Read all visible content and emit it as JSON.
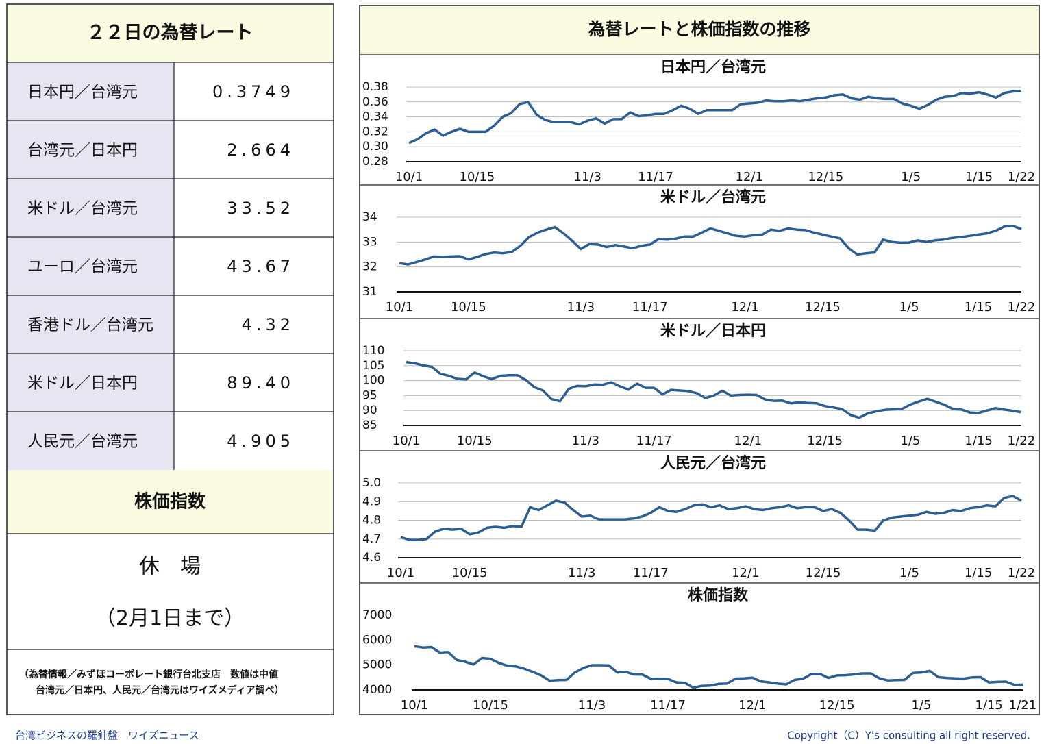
{
  "table": {
    "title": "２２日の為替レート",
    "rows": [
      [
        "日本円／台湾元",
        "0.3749"
      ],
      [
        "台湾元／日本円",
        "2.664"
      ],
      [
        "米ドル／台湾元",
        "33.52"
      ],
      [
        "ユーロ／台湾元",
        "43.67"
      ],
      [
        "香港ドル／台湾元",
        "4.32"
      ],
      [
        "米ドル／日本円",
        "89.40"
      ],
      [
        "人民元／台湾元",
        "4.905"
      ]
    ]
  },
  "stock": {
    "title": "株価指数",
    "status": "休　場",
    "note": "（2月1日まで）"
  },
  "notes": [
    "（為替情報／みずほコーポレート銀行台北支店　数値は中値",
    "台湾元／日本円、人民元／台湾元はワイズメディア調べ）"
  ],
  "panel_title": "為替レートと株価指数の推移",
  "footer": {
    "left": "台湾ビジネスの羅針盤　ワイズニュース",
    "right": "Copyright（C）Y's consulting all right reserved."
  },
  "chart_data": [
    {
      "type": "line",
      "title": "日本円／台湾元",
      "color": "#2b5f94",
      "grid": true,
      "ylim": [
        0.28,
        0.38
      ],
      "yticks": [
        0.28,
        {
          "value": 0.3,
          "label": "0.30"
        },
        0.32,
        0.34,
        0.36,
        0.38
      ],
      "categories": [
        "10/1",
        null,
        null,
        null,
        null,
        null,
        null,
        null,
        "10/15",
        null,
        null,
        null,
        null,
        null,
        null,
        null,
        null,
        null,
        null,
        null,
        null,
        "11/3",
        null,
        null,
        null,
        null,
        null,
        null,
        null,
        "11/17",
        null,
        null,
        null,
        null,
        null,
        null,
        null,
        null,
        null,
        null,
        "12/1",
        null,
        null,
        null,
        null,
        null,
        null,
        null,
        null,
        "12/15",
        null,
        null,
        null,
        null,
        null,
        null,
        null,
        null,
        null,
        "1/5",
        null,
        null,
        null,
        null,
        null,
        null,
        null,
        "1/15",
        null,
        null,
        null,
        null,
        "1/22"
      ],
      "values": [
        0.305,
        0.31,
        0.318,
        0.323,
        0.315,
        0.32,
        0.324,
        0.32,
        0.32,
        0.32,
        0.328,
        0.34,
        0.345,
        0.357,
        0.36,
        0.343,
        0.336,
        0.333,
        0.333,
        0.333,
        0.33,
        0.335,
        0.338,
        0.331,
        0.337,
        0.337,
        0.346,
        0.341,
        0.342,
        0.344,
        0.344,
        0.349,
        0.355,
        0.351,
        0.344,
        0.349,
        0.349,
        0.349,
        0.349,
        0.357,
        0.358,
        0.359,
        0.362,
        0.361,
        0.361,
        0.362,
        0.361,
        0.363,
        0.365,
        0.366,
        0.369,
        0.37,
        0.365,
        0.363,
        0.367,
        0.365,
        0.364,
        0.364,
        0.358,
        0.355,
        0.351,
        0.356,
        0.363,
        0.367,
        0.368,
        0.372,
        0.371,
        0.373,
        0.37,
        0.366,
        0.372,
        0.374,
        0.3749
      ]
    },
    {
      "type": "line",
      "title": "米ドル／台湾元",
      "color": "#2b5f94",
      "grid": true,
      "ylim": [
        31,
        34
      ],
      "yticks": [
        31,
        32,
        33,
        34
      ],
      "categories": [
        "10/1",
        null,
        null,
        null,
        null,
        null,
        null,
        null,
        "10/15",
        null,
        null,
        null,
        null,
        null,
        null,
        null,
        null,
        null,
        null,
        null,
        null,
        "11/3",
        null,
        null,
        null,
        null,
        null,
        null,
        null,
        "11/17",
        null,
        null,
        null,
        null,
        null,
        null,
        null,
        null,
        null,
        null,
        "12/1",
        null,
        null,
        null,
        null,
        null,
        null,
        null,
        null,
        "12/15",
        null,
        null,
        null,
        null,
        null,
        null,
        null,
        null,
        null,
        "1/5",
        null,
        null,
        null,
        null,
        null,
        null,
        null,
        "1/15",
        null,
        null,
        null,
        null,
        "1/22"
      ],
      "values": [
        32.15,
        32.1,
        32.2,
        32.3,
        32.42,
        32.4,
        32.42,
        32.43,
        32.3,
        32.4,
        32.52,
        32.58,
        32.55,
        32.6,
        32.85,
        33.2,
        33.38,
        33.5,
        33.6,
        33.35,
        33.05,
        32.72,
        32.92,
        32.9,
        32.8,
        32.88,
        32.82,
        32.75,
        32.85,
        32.9,
        33.12,
        33.1,
        33.14,
        33.22,
        33.22,
        33.38,
        33.55,
        33.45,
        33.35,
        33.25,
        33.22,
        33.28,
        33.3,
        33.5,
        33.45,
        33.55,
        33.5,
        33.48,
        33.38,
        33.3,
        33.22,
        33.15,
        32.75,
        32.5,
        32.55,
        32.58,
        33.1,
        33.0,
        32.97,
        32.98,
        33.07,
        33.0,
        33.07,
        33.1,
        33.17,
        33.2,
        33.25,
        33.3,
        33.35,
        33.45,
        33.62,
        33.65,
        33.52
      ]
    },
    {
      "type": "line",
      "title": "米ドル／日本円",
      "color": "#2b5f94",
      "grid": true,
      "ylim": [
        85,
        110
      ],
      "yticks": [
        85,
        90,
        95,
        100,
        105,
        110
      ],
      "categories": [
        "10/1",
        null,
        null,
        null,
        null,
        null,
        null,
        null,
        "10/15",
        null,
        null,
        null,
        null,
        null,
        null,
        null,
        null,
        null,
        null,
        null,
        null,
        "11/3",
        null,
        null,
        null,
        null,
        null,
        null,
        null,
        "11/17",
        null,
        null,
        null,
        null,
        null,
        null,
        null,
        null,
        null,
        null,
        "12/1",
        null,
        null,
        null,
        null,
        null,
        null,
        null,
        null,
        "12/15",
        null,
        null,
        null,
        null,
        null,
        null,
        null,
        null,
        null,
        "1/5",
        null,
        null,
        null,
        null,
        null,
        null,
        null,
        "1/15",
        null,
        null,
        null,
        null,
        "1/22"
      ],
      "values": [
        106.2,
        105.8,
        105.1,
        104.6,
        102.3,
        101.6,
        100.6,
        100.4,
        102.7,
        101.5,
        100.5,
        101.6,
        101.8,
        101.8,
        100.2,
        97.8,
        96.7,
        93.8,
        93.1,
        97.2,
        98.2,
        98.1,
        98.7,
        98.6,
        99.4,
        98.1,
        97.0,
        99.0,
        97.6,
        97.6,
        95.4,
        96.9,
        96.7,
        96.5,
        95.8,
        94.2,
        95.0,
        96.6,
        95.0,
        95.2,
        95.3,
        95.2,
        93.7,
        93.2,
        93.3,
        92.4,
        92.7,
        92.5,
        92.4,
        91.5,
        91.0,
        90.5,
        88.5,
        87.6,
        89.0,
        89.7,
        90.2,
        90.4,
        90.5,
        92.0,
        93.0,
        93.9,
        92.9,
        91.9,
        90.5,
        90.3,
        89.3,
        89.2,
        90.0,
        90.8,
        90.3,
        89.9,
        89.4
      ]
    },
    {
      "type": "line",
      "title": "人民元／台湾元",
      "color": "#2b5f94",
      "grid": true,
      "ylim": [
        4.6,
        5.0
      ],
      "yticks": [
        4.6,
        4.7,
        4.8,
        4.9,
        {
          "value": 5.0,
          "label": "5.0"
        }
      ],
      "categories": [
        "10/1",
        null,
        null,
        null,
        null,
        null,
        null,
        null,
        "10/15",
        null,
        null,
        null,
        null,
        null,
        null,
        null,
        null,
        null,
        null,
        null,
        null,
        "11/3",
        null,
        null,
        null,
        null,
        null,
        null,
        null,
        "11/17",
        null,
        null,
        null,
        null,
        null,
        null,
        null,
        null,
        null,
        null,
        "12/1",
        null,
        null,
        null,
        null,
        null,
        null,
        null,
        null,
        "12/15",
        null,
        null,
        null,
        null,
        null,
        null,
        null,
        null,
        null,
        "1/5",
        null,
        null,
        null,
        null,
        null,
        null,
        null,
        "1/15",
        null,
        null,
        null,
        null,
        "1/22"
      ],
      "values": [
        4.71,
        4.695,
        4.695,
        4.7,
        4.74,
        4.755,
        4.75,
        4.755,
        4.725,
        4.735,
        4.76,
        4.765,
        4.76,
        4.77,
        4.765,
        4.87,
        4.855,
        4.88,
        4.905,
        4.895,
        4.855,
        4.82,
        4.825,
        4.805,
        4.805,
        4.805,
        4.805,
        4.81,
        4.82,
        4.84,
        4.87,
        4.85,
        4.845,
        4.86,
        4.88,
        4.885,
        4.87,
        4.88,
        4.86,
        4.865,
        4.875,
        4.86,
        4.855,
        4.865,
        4.87,
        4.88,
        4.865,
        4.87,
        4.87,
        4.85,
        4.86,
        4.84,
        4.8,
        4.75,
        4.75,
        4.745,
        4.8,
        4.815,
        4.82,
        4.825,
        4.83,
        4.845,
        4.835,
        4.84,
        4.855,
        4.85,
        4.865,
        4.87,
        4.88,
        4.875,
        4.92,
        4.93,
        4.905
      ]
    },
    {
      "type": "line",
      "title": "株価指数",
      "color": "#2b5f94",
      "grid": false,
      "ylim": [
        4000,
        7000
      ],
      "yticks": [
        4000,
        5000,
        6000,
        7000
      ],
      "categories": [
        "10/1",
        null,
        null,
        null,
        null,
        null,
        null,
        null,
        null,
        "10/15",
        null,
        null,
        null,
        null,
        null,
        null,
        null,
        null,
        null,
        null,
        null,
        "11/3",
        null,
        null,
        null,
        null,
        null,
        null,
        null,
        null,
        "11/17",
        null,
        null,
        null,
        null,
        null,
        null,
        null,
        null,
        null,
        "12/1",
        null,
        null,
        null,
        null,
        null,
        null,
        null,
        null,
        null,
        "12/15",
        null,
        null,
        null,
        null,
        null,
        null,
        null,
        null,
        null,
        "1/5",
        null,
        null,
        null,
        null,
        null,
        null,
        null,
        "1/15",
        null,
        null,
        null,
        "1/21"
      ],
      "values": [
        5750,
        5700,
        5720,
        5500,
        5520,
        5200,
        5130,
        5020,
        5280,
        5250,
        5080,
        4970,
        4940,
        4850,
        4720,
        4580,
        4370,
        4390,
        4400,
        4700,
        4880,
        4990,
        4990,
        4980,
        4700,
        4720,
        4620,
        4610,
        4440,
        4450,
        4440,
        4300,
        4280,
        4090,
        4160,
        4170,
        4240,
        4250,
        4450,
        4460,
        4490,
        4340,
        4300,
        4250,
        4220,
        4400,
        4450,
        4640,
        4640,
        4480,
        4580,
        4590,
        4620,
        4660,
        4660,
        4470,
        4380,
        4390,
        4400,
        4680,
        4700,
        4760,
        4510,
        4480,
        4460,
        4450,
        4500,
        4510,
        4300,
        4320,
        4330,
        4200,
        4210
      ]
    }
  ]
}
